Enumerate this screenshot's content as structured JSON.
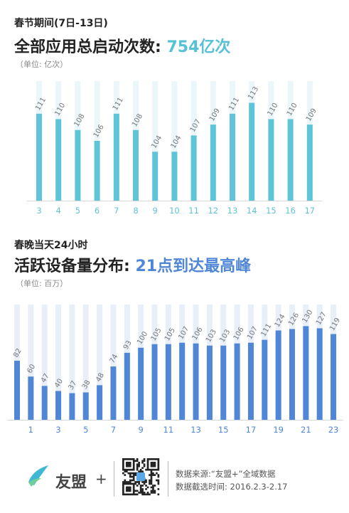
{
  "section1": {
    "subtitle": "春节期间(7日-13日)",
    "headline_prefix": "全部应用总启动次数: ",
    "headline_value": "754亿次",
    "unit": "（单位: 亿次）"
  },
  "section2": {
    "subtitle": "春晚当天24小时",
    "headline_prefix": "活跃设备量分布: ",
    "headline_value": "21点到达最高峰",
    "unit": "（单位: 百万）"
  },
  "footer": {
    "brand": "友盟",
    "brand_plus": "+",
    "source_line1": "数据来源:“友盟+”全域数据",
    "source_line2": "数据截选时间: 2016.2.3-2.17"
  },
  "colors": {
    "chart1_bar": "#5ec4d8",
    "chart1_bg": "#eaf6fa",
    "chart2_bar": "#4f86d6",
    "chart2_bg": "#e8eff9",
    "chart1_tick": "#5ec4d8",
    "chart2_tick": "#4f86d6"
  },
  "chart_data": [
    {
      "type": "bar",
      "categories": [
        "3",
        "4",
        "5",
        "6",
        "7",
        "8",
        "9",
        "10",
        "11",
        "12",
        "13",
        "14",
        "15",
        "16",
        "17"
      ],
      "values": [
        111,
        110,
        108,
        106,
        111,
        108,
        104,
        104,
        107,
        109,
        111,
        113,
        110,
        110,
        109
      ],
      "title": "全部应用总启动次数: 754亿次",
      "ylabel": "（单位: 亿次）",
      "ylim": [
        95,
        117
      ]
    },
    {
      "type": "bar",
      "categories": [
        "0",
        "1",
        "2",
        "3",
        "4",
        "5",
        "6",
        "7",
        "8",
        "9",
        "10",
        "11",
        "12",
        "13",
        "14",
        "15",
        "16",
        "17",
        "18",
        "19",
        "20",
        "21",
        "22",
        "23"
      ],
      "tick_labels": [
        "",
        "1",
        "",
        "3",
        "",
        "5",
        "",
        "7",
        "",
        "9",
        "",
        "11",
        "",
        "13",
        "",
        "15",
        "",
        "17",
        "",
        "19",
        "",
        "21",
        "",
        "23"
      ],
      "values": [
        82,
        60,
        47,
        40,
        37,
        38,
        48,
        74,
        93,
        100,
        105,
        105,
        107,
        106,
        103,
        103,
        106,
        107,
        111,
        124,
        126,
        130,
        127,
        119
      ],
      "title": "活跃设备量分布: 21点到达最高峰",
      "ylabel": "（单位: 百万）",
      "ylim": [
        0,
        160
      ]
    }
  ]
}
